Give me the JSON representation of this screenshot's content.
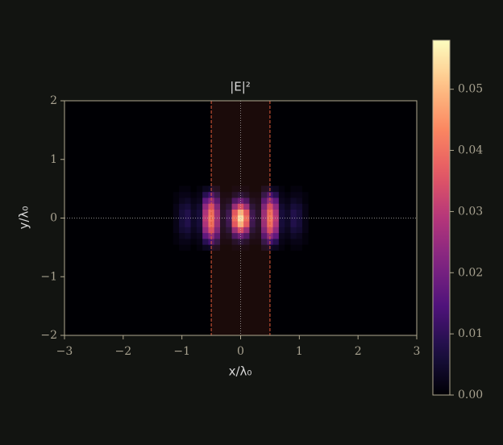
{
  "chart_data": {
    "type": "heatmap",
    "title": "|E|²",
    "x_label": "x/λ₀",
    "y_label": "y/λ₀",
    "xlim": [
      -3,
      3
    ],
    "ylim": [
      -2,
      2
    ],
    "xticks": [
      {
        "value": -3,
        "label": "−3"
      },
      {
        "value": -2,
        "label": "−2"
      },
      {
        "value": -1,
        "label": "−1"
      },
      0,
      1,
      2,
      3
    ],
    "yticks": [
      {
        "value": -2,
        "label": "−2"
      },
      {
        "value": -1,
        "label": "−1"
      },
      0,
      1,
      2
    ],
    "band": [
      -0.5,
      0.5
    ],
    "band_color": "#e05a3a",
    "guides": [
      0,
      0
    ],
    "colormap": "magma",
    "clim": [
      0,
      0.058
    ],
    "cticks": [
      {
        "value": 0,
        "label": "0.00"
      },
      {
        "value": 0.01,
        "label": "0.01"
      },
      {
        "value": 0.02,
        "label": "0.02"
      },
      {
        "value": 0.03,
        "label": "0.03"
      },
      {
        "value": 0.04,
        "label": "0.04"
      },
      {
        "value": 0.05,
        "label": "0.05"
      }
    ],
    "x": [
      -1.1,
      -1.0,
      -0.9,
      -0.8,
      -0.7,
      -0.6,
      -0.5,
      -0.4,
      -0.3,
      -0.2,
      -0.1,
      0,
      0.1,
      0.2,
      0.3,
      0.4,
      0.5,
      0.6,
      0.7,
      0.8,
      0.9,
      1.0,
      1.1
    ],
    "y": [
      -0.5,
      -0.4,
      -0.3,
      -0.2,
      -0.1,
      0,
      0.1,
      0.2,
      0.3,
      0.4,
      0.5
    ],
    "z": [
      [
        0,
        0.001,
        0.001,
        0,
        0.001,
        0.003,
        0.004,
        0.003,
        0,
        0,
        0.001,
        0.001,
        0.001,
        0,
        0,
        0.003,
        0.004,
        0.003,
        0.001,
        0,
        0.001,
        0.001,
        0
      ],
      [
        0.001,
        0.002,
        0.002,
        0.001,
        0.002,
        0.009,
        0.013,
        0.008,
        0.001,
        0.001,
        0.004,
        0.006,
        0.004,
        0.001,
        0.001,
        0.008,
        0.013,
        0.009,
        0.002,
        0.001,
        0.002,
        0.002,
        0.001
      ],
      [
        0.001,
        0.003,
        0.004,
        0.002,
        0.003,
        0.017,
        0.023,
        0.014,
        0.002,
        0.003,
        0.012,
        0.017,
        0.012,
        0.003,
        0.002,
        0.014,
        0.023,
        0.017,
        0.003,
        0.002,
        0.004,
        0.003,
        0.001
      ],
      [
        0.002,
        0.005,
        0.006,
        0.003,
        0.005,
        0.024,
        0.034,
        0.02,
        0.003,
        0.006,
        0.024,
        0.034,
        0.024,
        0.006,
        0.003,
        0.02,
        0.034,
        0.024,
        0.005,
        0.003,
        0.006,
        0.005,
        0.002
      ],
      [
        0.002,
        0.006,
        0.008,
        0.004,
        0.006,
        0.028,
        0.04,
        0.024,
        0.004,
        0.009,
        0.036,
        0.05,
        0.036,
        0.009,
        0.004,
        0.024,
        0.04,
        0.028,
        0.006,
        0.004,
        0.008,
        0.006,
        0.002
      ],
      [
        0.002,
        0.006,
        0.008,
        0.004,
        0.006,
        0.03,
        0.042,
        0.025,
        0.004,
        0.01,
        0.04,
        0.056,
        0.04,
        0.01,
        0.004,
        0.025,
        0.042,
        0.03,
        0.006,
        0.004,
        0.008,
        0.006,
        0.002
      ],
      [
        0.002,
        0.006,
        0.008,
        0.004,
        0.006,
        0.028,
        0.04,
        0.024,
        0.004,
        0.009,
        0.036,
        0.05,
        0.036,
        0.009,
        0.004,
        0.024,
        0.04,
        0.028,
        0.006,
        0.004,
        0.008,
        0.006,
        0.002
      ],
      [
        0.002,
        0.005,
        0.006,
        0.003,
        0.005,
        0.024,
        0.034,
        0.02,
        0.003,
        0.006,
        0.024,
        0.034,
        0.024,
        0.006,
        0.003,
        0.02,
        0.034,
        0.024,
        0.005,
        0.003,
        0.006,
        0.005,
        0.002
      ],
      [
        0.001,
        0.003,
        0.004,
        0.002,
        0.003,
        0.017,
        0.023,
        0.014,
        0.002,
        0.003,
        0.012,
        0.017,
        0.012,
        0.003,
        0.002,
        0.014,
        0.023,
        0.017,
        0.003,
        0.002,
        0.004,
        0.003,
        0.001
      ],
      [
        0.001,
        0.002,
        0.002,
        0.001,
        0.002,
        0.009,
        0.013,
        0.008,
        0.001,
        0.001,
        0.004,
        0.006,
        0.004,
        0.001,
        0.001,
        0.008,
        0.013,
        0.009,
        0.002,
        0.001,
        0.002,
        0.002,
        0.001
      ],
      [
        0,
        0.001,
        0.001,
        0,
        0.001,
        0.003,
        0.004,
        0.003,
        0,
        0,
        0.001,
        0.001,
        0.001,
        0,
        0,
        0.003,
        0.004,
        0.003,
        0.001,
        0,
        0.001,
        0.001,
        0
      ]
    ]
  }
}
